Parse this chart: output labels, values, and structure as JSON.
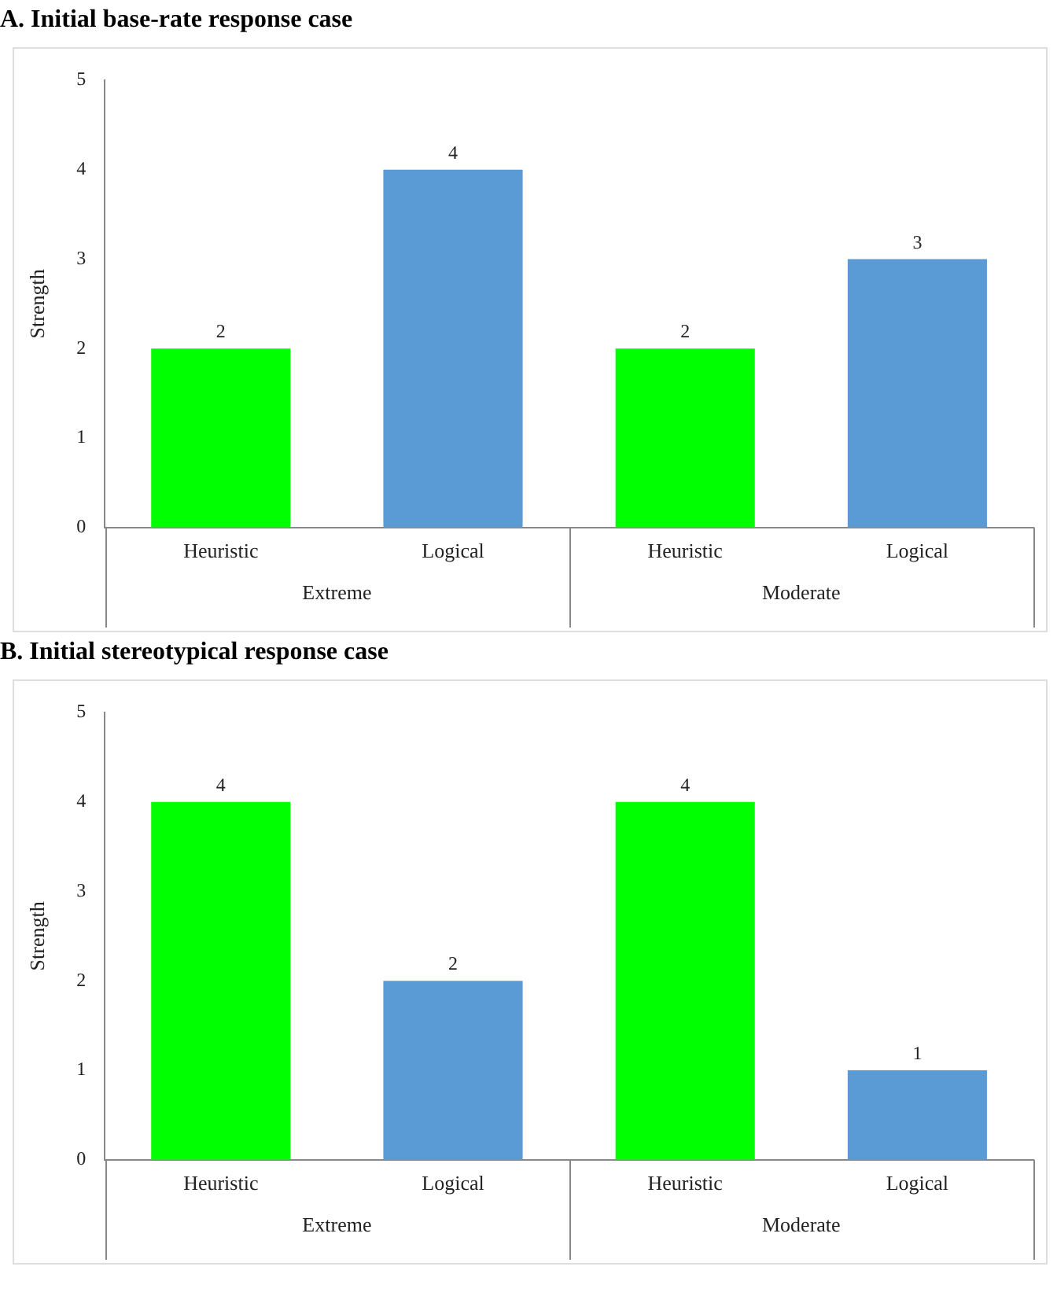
{
  "chart_data": [
    {
      "type": "bar",
      "title": "A. Initial base-rate response case",
      "ylabel": "Strength",
      "categories": [
        "Heuristic",
        "Logical",
        "Heuristic",
        "Logical"
      ],
      "values": [
        2,
        4,
        2,
        3
      ],
      "colors": [
        "#00ff00",
        "#5b9bd5",
        "#00ff00",
        "#5b9bd5"
      ],
      "ylim": [
        0,
        5
      ],
      "yticks": [
        0,
        1,
        2,
        3,
        4,
        5
      ],
      "grid": false,
      "legend": false,
      "data_labels": true,
      "annotations": [
        "Extreme",
        "Moderate"
      ]
    },
    {
      "type": "bar",
      "title": "B. Initial stereotypical response case",
      "ylabel": "Strength",
      "categories": [
        "Heuristic",
        "Logical",
        "Heuristic",
        "Logical"
      ],
      "values": [
        4,
        2,
        4,
        1
      ],
      "colors": [
        "#00ff00",
        "#5b9bd5",
        "#00ff00",
        "#5b9bd5"
      ],
      "ylim": [
        0,
        5
      ],
      "yticks": [
        0,
        1,
        2,
        3,
        4,
        5
      ],
      "grid": false,
      "legend": false,
      "data_labels": true,
      "annotations": [
        "Extreme",
        "Moderate"
      ]
    }
  ]
}
